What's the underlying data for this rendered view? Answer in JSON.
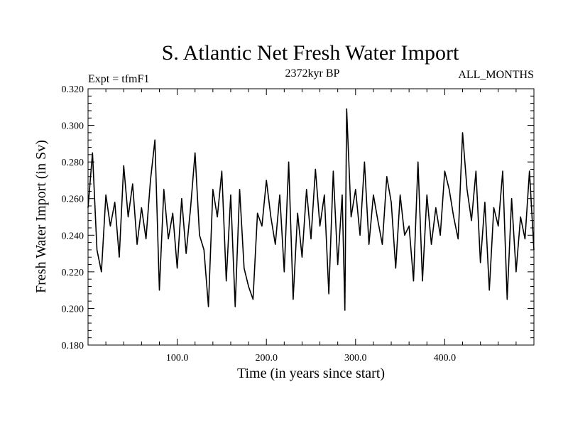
{
  "chart_data": {
    "type": "line",
    "title": "S. Atlantic Net Fresh Water Import",
    "subtitle_center": "2372kyr BP",
    "subtitle_left": "Expt = tfmF1",
    "subtitle_right": "ALL_MONTHS",
    "xlabel": "Time (in years since start)",
    "ylabel": "Fresh Water Import (in Sv)",
    "xlim": [
      0,
      500
    ],
    "ylim": [
      0.18,
      0.32
    ],
    "xticks": [
      100,
      200,
      300,
      400
    ],
    "xtick_labels": [
      "100.0",
      "200.0",
      "300.0",
      "400.0"
    ],
    "yticks": [
      0.18,
      0.2,
      0.22,
      0.24,
      0.26,
      0.28,
      0.3,
      0.32
    ],
    "ytick_labels": [
      "0.180",
      "0.200",
      "0.220",
      "0.240",
      "0.260",
      "0.280",
      "0.300",
      "0.320"
    ],
    "series": [
      {
        "name": "Fresh Water Import",
        "x": [
          0,
          5,
          10,
          15,
          20,
          25,
          30,
          35,
          40,
          45,
          50,
          55,
          60,
          65,
          70,
          75,
          80,
          85,
          90,
          95,
          100,
          105,
          110,
          115,
          120,
          125,
          130,
          135,
          140,
          145,
          150,
          155,
          160,
          165,
          170,
          175,
          180,
          185,
          190,
          195,
          200,
          205,
          210,
          215,
          220,
          225,
          230,
          235,
          240,
          245,
          250,
          255,
          260,
          265,
          270,
          275,
          280,
          285,
          288,
          290,
          295,
          300,
          305,
          310,
          315,
          320,
          325,
          330,
          335,
          340,
          345,
          350,
          355,
          360,
          365,
          370,
          375,
          380,
          385,
          390,
          395,
          400,
          405,
          410,
          415,
          420,
          425,
          430,
          435,
          440,
          445,
          450,
          455,
          460,
          465,
          470,
          475,
          480,
          485,
          490,
          495,
          500
        ],
        "y": [
          0.255,
          0.285,
          0.232,
          0.22,
          0.262,
          0.245,
          0.258,
          0.228,
          0.278,
          0.25,
          0.268,
          0.235,
          0.255,
          0.238,
          0.27,
          0.292,
          0.21,
          0.265,
          0.238,
          0.252,
          0.222,
          0.26,
          0.23,
          0.255,
          0.285,
          0.24,
          0.232,
          0.201,
          0.265,
          0.25,
          0.275,
          0.215,
          0.262,
          0.201,
          0.265,
          0.222,
          0.212,
          0.205,
          0.252,
          0.245,
          0.27,
          0.25,
          0.235,
          0.262,
          0.22,
          0.28,
          0.205,
          0.252,
          0.228,
          0.265,
          0.238,
          0.276,
          0.245,
          0.262,
          0.208,
          0.275,
          0.224,
          0.262,
          0.199,
          0.309,
          0.25,
          0.265,
          0.24,
          0.28,
          0.235,
          0.262,
          0.248,
          0.235,
          0.272,
          0.258,
          0.222,
          0.262,
          0.24,
          0.245,
          0.215,
          0.28,
          0.215,
          0.262,
          0.235,
          0.255,
          0.24,
          0.275,
          0.265,
          0.25,
          0.238,
          0.296,
          0.265,
          0.248,
          0.275,
          0.225,
          0.258,
          0.21,
          0.255,
          0.245,
          0.275,
          0.205,
          0.26,
          0.22,
          0.25,
          0.238,
          0.275,
          0.232
        ]
      }
    ]
  }
}
